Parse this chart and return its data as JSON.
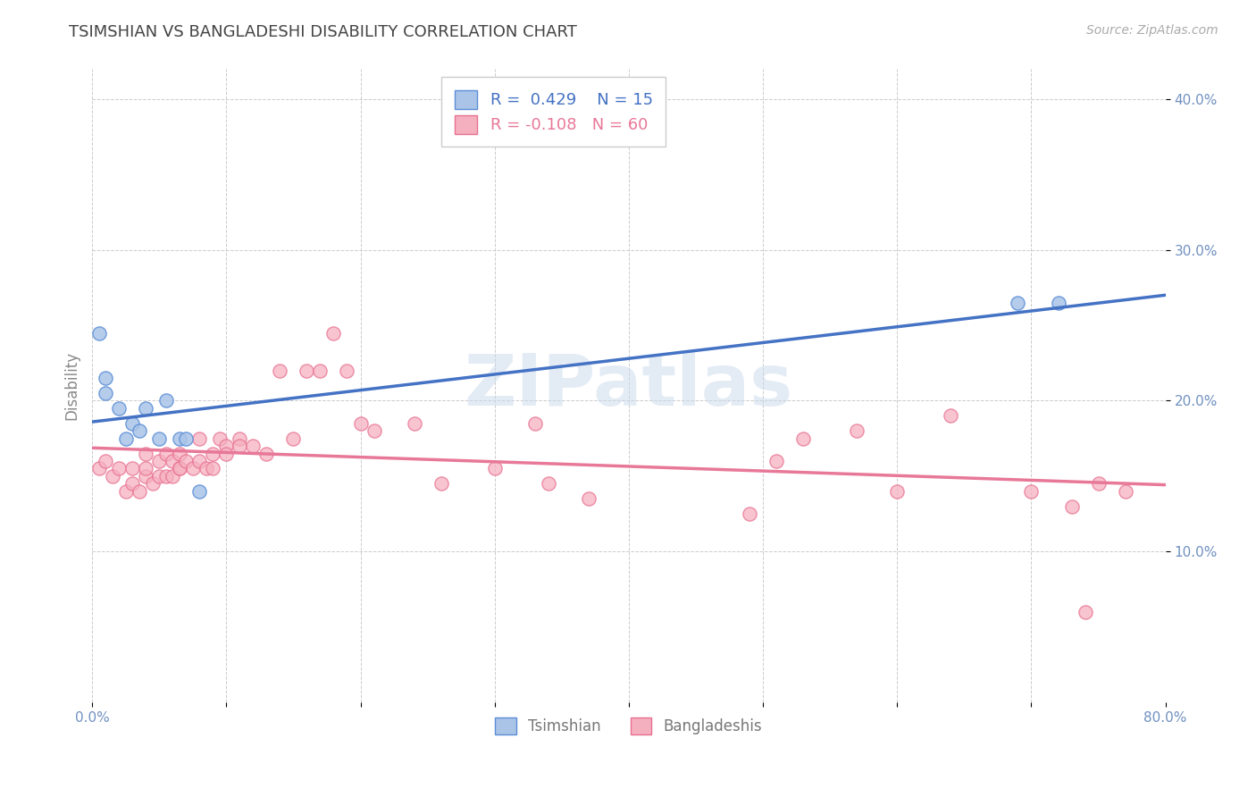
{
  "title": "TSIMSHIAN VS BANGLADESHI DISABILITY CORRELATION CHART",
  "source": "Source: ZipAtlas.com",
  "xlabel": "",
  "ylabel": "Disability",
  "xlim": [
    0.0,
    0.8
  ],
  "ylim": [
    0.0,
    0.42
  ],
  "xticks": [
    0.0,
    0.1,
    0.2,
    0.3,
    0.4,
    0.5,
    0.6,
    0.7,
    0.8
  ],
  "xticklabels": [
    "0.0%",
    "",
    "",
    "",
    "",
    "",
    "",
    "",
    "80.0%"
  ],
  "yticks": [
    0.1,
    0.2,
    0.3,
    0.4
  ],
  "yticklabels": [
    "10.0%",
    "20.0%",
    "30.0%",
    "40.0%"
  ],
  "tsimshian_color": "#aac4e8",
  "bangladeshi_color": "#f5b0c0",
  "tsimshian_edge_color": "#5b8ed6",
  "bangladeshi_edge_color": "#e87090",
  "tsimshian_line_color": "#4472c4",
  "bangladeshi_line_color": "#e87898",
  "tsimshian_R": 0.429,
  "tsimshian_N": 15,
  "bangladeshi_R": -0.108,
  "bangladeshi_N": 60,
  "watermark": "ZIPatlas",
  "legend_label_1": "Tsimshian",
  "legend_label_2": "Bangladeshis",
  "tsimshian_x": [
    0.005,
    0.01,
    0.01,
    0.02,
    0.025,
    0.03,
    0.035,
    0.04,
    0.05,
    0.055,
    0.065,
    0.07,
    0.08,
    0.69,
    0.72
  ],
  "tsimshian_y": [
    0.245,
    0.215,
    0.205,
    0.195,
    0.175,
    0.185,
    0.18,
    0.195,
    0.175,
    0.2,
    0.175,
    0.175,
    0.14,
    0.265,
    0.265
  ],
  "bangladeshi_x": [
    0.005,
    0.01,
    0.015,
    0.02,
    0.025,
    0.03,
    0.03,
    0.035,
    0.04,
    0.04,
    0.04,
    0.045,
    0.05,
    0.05,
    0.055,
    0.055,
    0.06,
    0.06,
    0.065,
    0.065,
    0.065,
    0.07,
    0.075,
    0.08,
    0.08,
    0.085,
    0.09,
    0.09,
    0.095,
    0.1,
    0.1,
    0.11,
    0.11,
    0.12,
    0.13,
    0.14,
    0.15,
    0.16,
    0.17,
    0.18,
    0.19,
    0.2,
    0.21,
    0.24,
    0.26,
    0.3,
    0.33,
    0.34,
    0.37,
    0.49,
    0.51,
    0.53,
    0.57,
    0.6,
    0.64,
    0.7,
    0.73,
    0.74,
    0.75,
    0.77
  ],
  "bangladeshi_y": [
    0.155,
    0.16,
    0.15,
    0.155,
    0.14,
    0.145,
    0.155,
    0.14,
    0.15,
    0.155,
    0.165,
    0.145,
    0.15,
    0.16,
    0.15,
    0.165,
    0.15,
    0.16,
    0.155,
    0.155,
    0.165,
    0.16,
    0.155,
    0.16,
    0.175,
    0.155,
    0.155,
    0.165,
    0.175,
    0.17,
    0.165,
    0.175,
    0.17,
    0.17,
    0.165,
    0.22,
    0.175,
    0.22,
    0.22,
    0.245,
    0.22,
    0.185,
    0.18,
    0.185,
    0.145,
    0.155,
    0.185,
    0.145,
    0.135,
    0.125,
    0.16,
    0.175,
    0.18,
    0.14,
    0.19,
    0.14,
    0.13,
    0.06,
    0.145,
    0.14
  ],
  "background_color": "#ffffff",
  "grid_color": "#cccccc",
  "title_color": "#444444",
  "axis_color": "#7090c0",
  "tick_color": "#7090c0"
}
